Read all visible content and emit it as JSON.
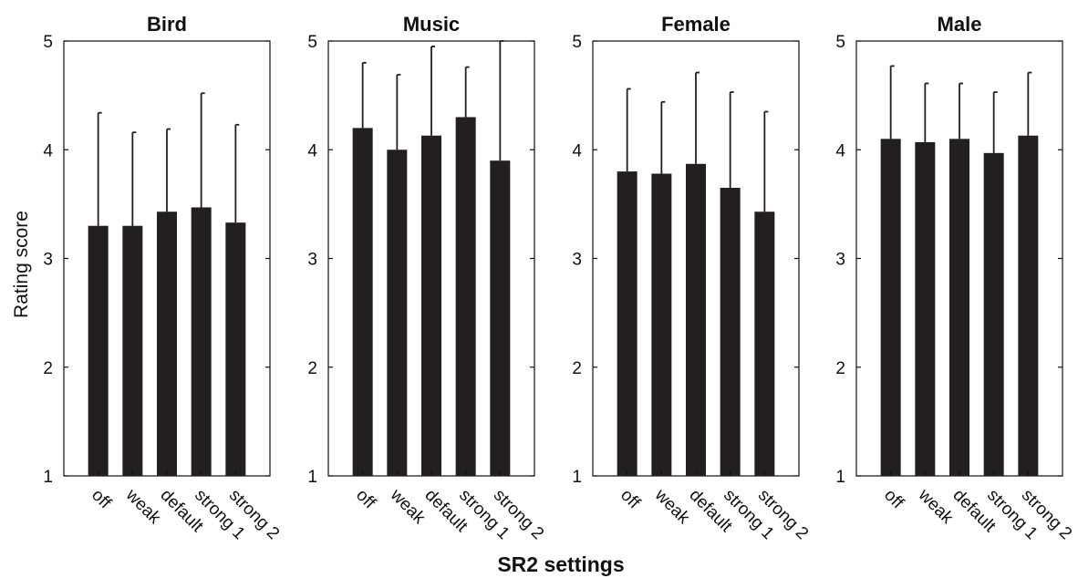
{
  "chart_data": {
    "type": "bar",
    "categories": [
      "off",
      "weak",
      "default",
      "strong 1",
      "strong 2"
    ],
    "ylabel": "Rating score",
    "xlabel": "SR2 settings",
    "ylim": [
      1,
      5
    ],
    "yticks": [
      1,
      2,
      3,
      4,
      5
    ],
    "bar_color": "#231f20",
    "panels": [
      {
        "title": "Bird",
        "values": [
          3.3,
          3.3,
          3.43,
          3.47,
          3.33
        ],
        "errors": [
          1.04,
          0.86,
          0.76,
          1.05,
          0.9
        ]
      },
      {
        "title": "Music",
        "values": [
          4.2,
          4.0,
          4.13,
          4.3,
          3.9
        ],
        "errors": [
          0.6,
          0.69,
          0.82,
          0.46,
          1.1
        ]
      },
      {
        "title": "Female",
        "values": [
          3.8,
          3.78,
          3.87,
          3.65,
          3.43
        ],
        "errors": [
          0.76,
          0.66,
          0.84,
          0.88,
          0.92
        ]
      },
      {
        "title": "Male",
        "values": [
          4.1,
          4.07,
          4.1,
          3.97,
          4.13
        ],
        "errors": [
          0.67,
          0.54,
          0.51,
          0.56,
          0.58
        ]
      }
    ]
  }
}
